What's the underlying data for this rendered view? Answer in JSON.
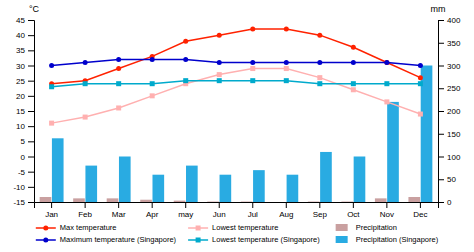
{
  "chart_data": {
    "type": "bar",
    "categories": [
      "Jan",
      "Feb",
      "Mar",
      "Apr",
      "may",
      "Jun",
      "Jul",
      "Aug",
      "Sep",
      "Oct",
      "Nov",
      "Dec"
    ],
    "series": [
      {
        "name": "Max temperature",
        "type": "line",
        "marker": "circle",
        "color": "#ff2200",
        "values": [
          24,
          25,
          29,
          33,
          38,
          40,
          42,
          42,
          40,
          36,
          31,
          26
        ]
      },
      {
        "name": "Lowest temperature",
        "type": "line",
        "marker": "square",
        "color": "#ffb0b0",
        "values": [
          11,
          13,
          16,
          20,
          24,
          27,
          29,
          29,
          26,
          22,
          18,
          14
        ]
      },
      {
        "name": "Precipitation",
        "type": "bar",
        "axis": "y2",
        "color": "#c9a0a0",
        "values": [
          11,
          8,
          8,
          5,
          3,
          1,
          1,
          0,
          1,
          1,
          8,
          11
        ]
      },
      {
        "name": "Maximum temperature (Singapore)",
        "type": "line",
        "marker": "circle",
        "color": "#0000cc",
        "values": [
          30,
          31,
          32,
          32,
          32,
          31,
          31,
          31,
          31,
          31,
          31,
          30
        ]
      },
      {
        "name": "Lowest temperature (Singapore)",
        "type": "line",
        "marker": "square",
        "color": "#00aacc",
        "values": [
          23,
          24,
          24,
          24,
          25,
          25,
          25,
          25,
          24,
          24,
          24,
          24
        ]
      },
      {
        "name": "Precipitation (Singapore)",
        "type": "bar",
        "axis": "y2",
        "color": "#29abe2",
        "values": [
          140,
          80,
          100,
          60,
          80,
          60,
          70,
          60,
          110,
          100,
          220,
          300
        ]
      }
    ],
    "ylabel": "°C",
    "y2label": "mm",
    "ylim": [
      -15,
      45
    ],
    "yticks": [
      -15,
      -10,
      -5,
      0,
      5,
      10,
      15,
      20,
      25,
      30,
      35,
      40,
      45
    ],
    "y2lim": [
      0,
      400
    ],
    "y2ticks": [
      0,
      50,
      100,
      150,
      200,
      250,
      300,
      350,
      400
    ],
    "legend": "bottom"
  }
}
